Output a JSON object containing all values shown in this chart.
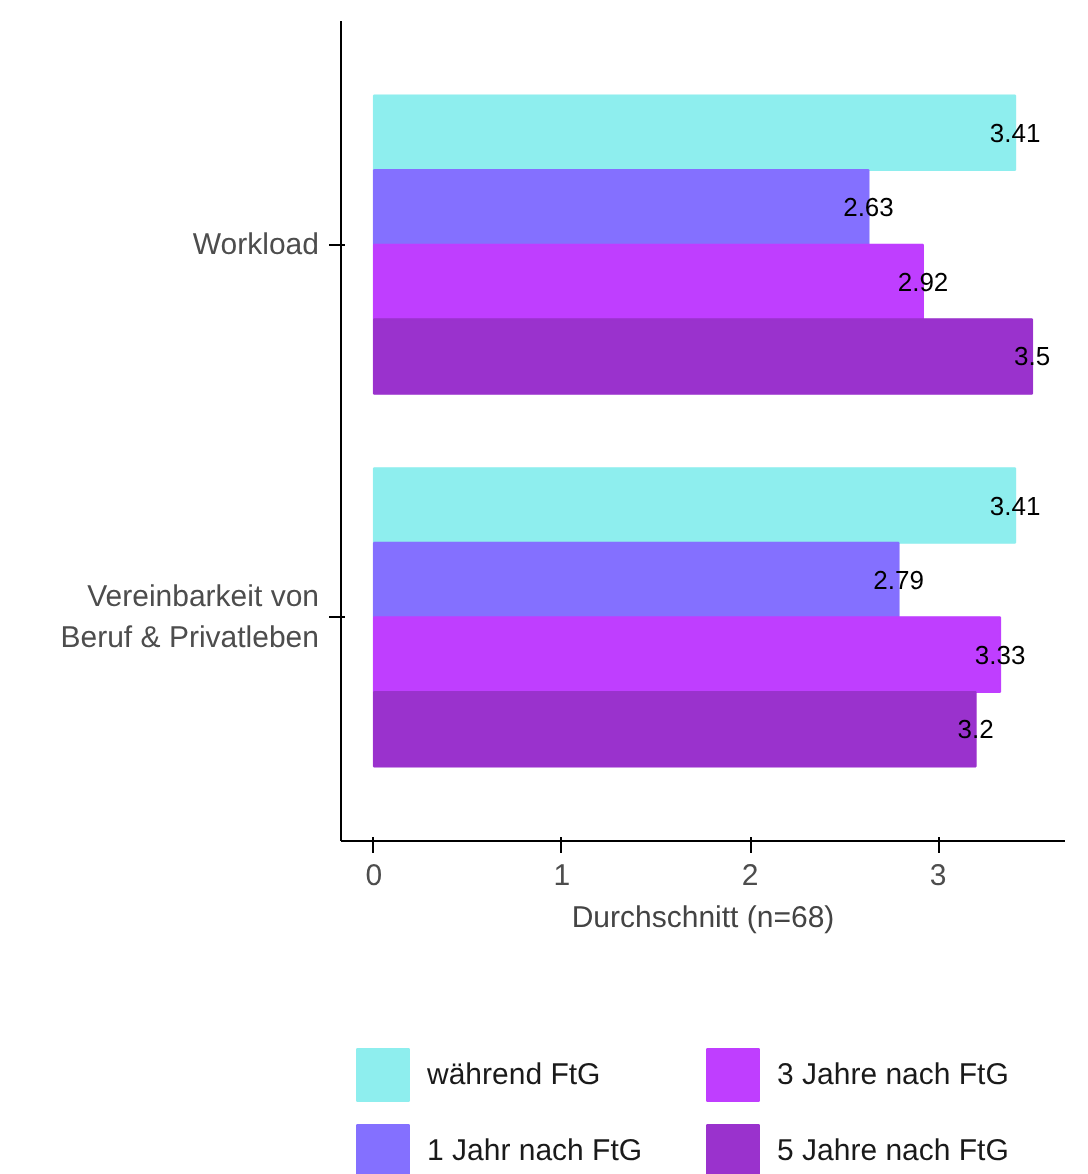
{
  "chart_data": {
    "type": "bar",
    "orientation": "horizontal",
    "xlabel": "Durchschnitt (n=68)",
    "categories": [
      "Workload",
      "Vereinbarkeit von\nBeruf & Privatleben"
    ],
    "series": [
      {
        "name": "während FtG",
        "color": "#8eeeee",
        "values": [
          3.41,
          3.41
        ]
      },
      {
        "name": "1 Jahr nach FtG",
        "color": "#8470ff",
        "values": [
          2.63,
          2.79
        ]
      },
      {
        "name": "3 Jahre nach FtG",
        "color": "#bf3eff",
        "values": [
          2.92,
          3.33
        ]
      },
      {
        "name": "5 Jahre nach FtG",
        "color": "#9a32cd",
        "values": [
          3.5,
          3.2
        ]
      }
    ],
    "xlim": [
      -0.175,
      3.675
    ],
    "xticks": [
      0,
      1,
      2,
      3
    ],
    "data_labels": true,
    "legend": "bottom",
    "grid": false
  }
}
